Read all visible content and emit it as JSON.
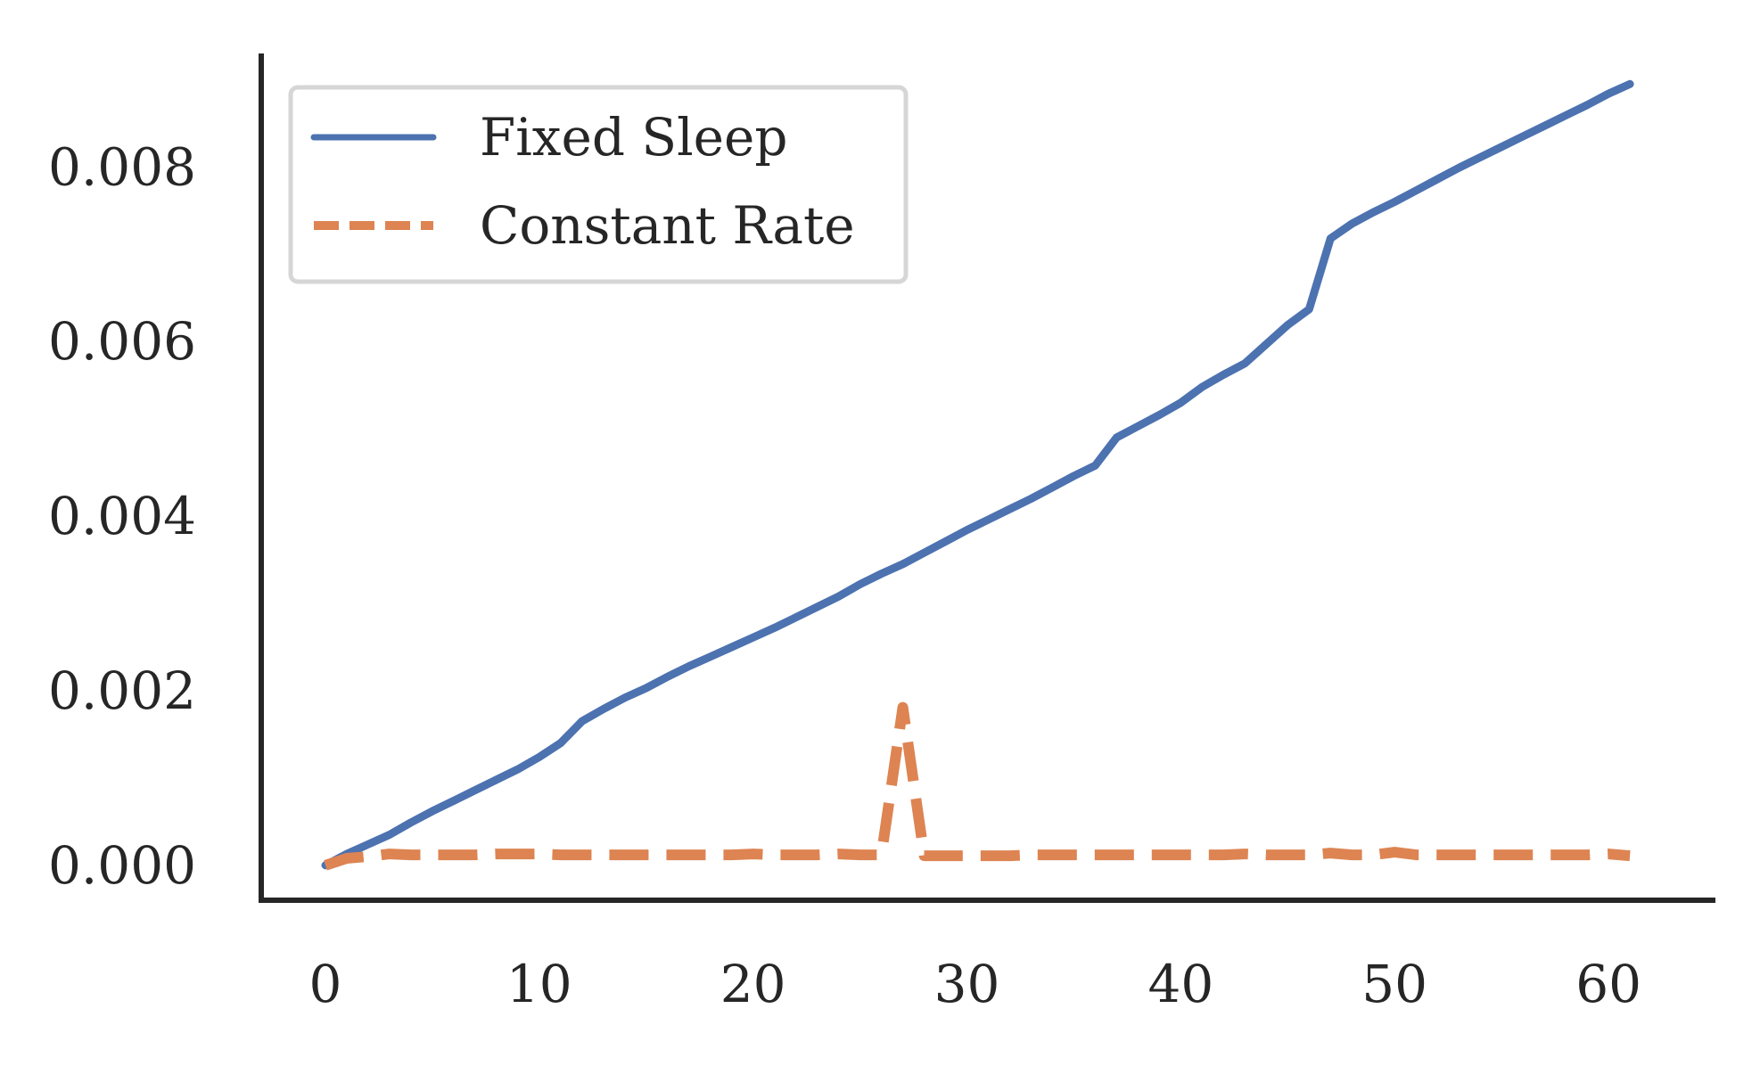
{
  "chart_data": {
    "type": "line",
    "title": "",
    "xlabel": "",
    "ylabel": "",
    "xlim": [
      -3,
      65
    ],
    "ylim": [
      -0.0004,
      0.0093
    ],
    "x_ticks": [
      0,
      10,
      20,
      30,
      40,
      50,
      60
    ],
    "x_tick_labels": [
      "0",
      "10",
      "20",
      "30",
      "40",
      "50",
      "60"
    ],
    "y_ticks": [
      0.0,
      0.002,
      0.004,
      0.006,
      0.008
    ],
    "y_tick_labels": [
      "0.000",
      "0.002",
      "0.004",
      "0.006",
      "0.008"
    ],
    "grid": false,
    "legend_position": "top-left",
    "x": [
      0,
      1,
      2,
      3,
      4,
      5,
      6,
      7,
      8,
      9,
      10,
      11,
      12,
      13,
      14,
      15,
      16,
      17,
      18,
      19,
      20,
      21,
      22,
      23,
      24,
      25,
      26,
      27,
      28,
      29,
      30,
      31,
      32,
      33,
      34,
      35,
      36,
      37,
      38,
      39,
      40,
      41,
      42,
      43,
      44,
      45,
      46,
      47,
      48,
      49,
      50,
      51,
      52,
      53,
      54,
      55,
      56,
      57,
      58,
      59,
      60,
      61
    ],
    "series": [
      {
        "name": "Fixed Sleep",
        "color": "#4c72b0",
        "style": "solid",
        "values": [
          0.0,
          0.00013,
          0.00024,
          0.00035,
          0.00049,
          0.00062,
          0.00074,
          0.00086,
          0.00098,
          0.0011,
          0.00124,
          0.0014,
          0.00165,
          0.00179,
          0.00192,
          0.00203,
          0.00216,
          0.00228,
          0.00239,
          0.0025,
          0.00261,
          0.00272,
          0.00284,
          0.00296,
          0.00308,
          0.00322,
          0.00334,
          0.00345,
          0.00358,
          0.00371,
          0.00384,
          0.00396,
          0.00408,
          0.0042,
          0.00433,
          0.00446,
          0.00458,
          0.0049,
          0.00503,
          0.00516,
          0.0053,
          0.00548,
          0.00562,
          0.00575,
          0.00597,
          0.00619,
          0.00637,
          0.00718,
          0.00735,
          0.00748,
          0.0076,
          0.00773,
          0.00786,
          0.00799,
          0.00811,
          0.00823,
          0.00835,
          0.00847,
          0.00859,
          0.00871,
          0.00884,
          0.00895
        ]
      },
      {
        "name": "Constant Rate",
        "color": "#dd8452",
        "style": "dashed",
        "values": [
          0.0,
          8e-05,
          0.0001,
          0.00013,
          0.00012,
          0.00012,
          0.00012,
          0.00012,
          0.00013,
          0.00013,
          0.00013,
          0.00012,
          0.00012,
          0.00012,
          0.00012,
          0.00012,
          0.00012,
          0.00012,
          0.00012,
          0.00012,
          0.00013,
          0.00012,
          0.00012,
          0.00012,
          0.00013,
          0.00012,
          0.00012,
          0.00181,
          0.00011,
          0.00011,
          0.00011,
          0.00011,
          0.00011,
          0.00012,
          0.00012,
          0.00012,
          0.00012,
          0.00012,
          0.00012,
          0.00012,
          0.00012,
          0.00012,
          0.00012,
          0.00013,
          0.00012,
          0.00012,
          0.00012,
          0.00014,
          0.00012,
          0.00012,
          0.00015,
          0.00012,
          0.00012,
          0.00012,
          0.00012,
          0.00012,
          0.00012,
          0.00012,
          0.00012,
          0.00012,
          0.00013,
          0.00011
        ]
      }
    ]
  }
}
